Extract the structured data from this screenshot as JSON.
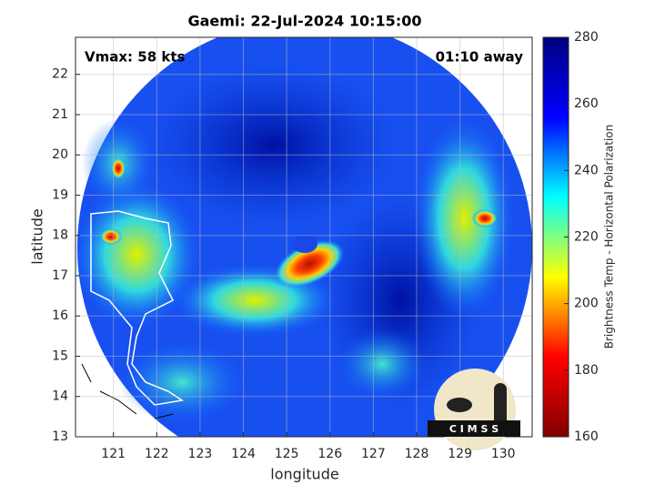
{
  "chart_data": {
    "type": "image",
    "title": "Gaemi: 22-Jul-2024 10:15:00",
    "annotations": [
      "Vmax: 58 kts",
      "01:10 away"
    ],
    "x_label": "longitude",
    "y_label": "latitude",
    "xlim": [
      120.125,
      130.667
    ],
    "xticks": [
      121,
      122,
      123,
      124,
      125,
      126,
      127,
      128,
      129,
      130
    ],
    "ylim": [
      13,
      22.92
    ],
    "yticks": [
      13,
      14,
      15,
      16,
      17,
      18,
      19,
      20,
      21,
      22
    ],
    "grid": true,
    "colorbar": {
      "label": "Brightness Temp - Horizontal Polarization",
      "lim": [
        160,
        280
      ],
      "ticks": [
        160,
        180,
        200,
        220,
        240,
        260,
        280
      ],
      "colormap": [
        "#800000",
        "#ff0000",
        "#ffff00",
        "#00ffff",
        "#0000ff",
        "#000080"
      ]
    },
    "logo": "C I M S S"
  }
}
